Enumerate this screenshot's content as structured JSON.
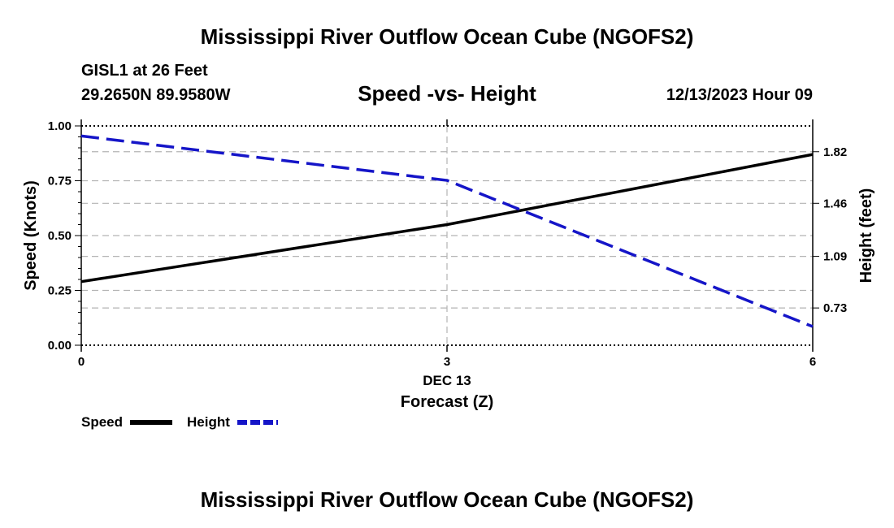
{
  "header": {
    "title": "Mississippi River Outflow Ocean Cube (NGOFS2)",
    "station": "GISL1 at 26 Feet",
    "coordinates": "29.2650N  89.9580W",
    "datetime": "12/13/2023 Hour 09"
  },
  "footer": {
    "title": "Mississippi River Outflow Ocean Cube (NGOFS2)"
  },
  "colors": {
    "speed": "#000000",
    "height": "#1515c8",
    "grid": "#b4b4b4"
  },
  "chart_data": {
    "type": "line",
    "title": "Speed -vs- Height",
    "xlabel": "Forecast (Z)",
    "x_date_label": "DEC 13",
    "ylabel_left": "Speed (Knots)",
    "ylabel_right": "Height (feet)",
    "xlim": [
      0,
      6
    ],
    "x_ticks": [
      0,
      3,
      6
    ],
    "x_tick_labels": [
      "0",
      "3",
      "6"
    ],
    "ylim_left": [
      0,
      1
    ],
    "y_ticks_left": [
      0,
      0.25,
      0.5,
      0.75,
      1.0
    ],
    "y_tick_labels_left": [
      "0.00",
      "0.25",
      "0.50",
      "0.75",
      "1.00"
    ],
    "ylim_right": [
      0.47,
      2.0
    ],
    "y_ticks_right": [
      0.73,
      1.09,
      1.46,
      1.82
    ],
    "y_tick_labels_right": [
      "0.73",
      "1.09",
      "1.46",
      "1.82"
    ],
    "grid": true,
    "series": [
      {
        "name": "Speed",
        "axis": "left",
        "style": "solid",
        "x": [
          0,
          3,
          6
        ],
        "values": [
          0.29,
          0.55,
          0.87
        ]
      },
      {
        "name": "Height",
        "axis": "right",
        "style": "dashed",
        "x": [
          0,
          3,
          6
        ],
        "values": [
          1.93,
          1.62,
          0.6
        ]
      }
    ],
    "legend": [
      {
        "label": "Speed",
        "style": "solid"
      },
      {
        "label": "Height",
        "style": "dashed"
      }
    ]
  }
}
